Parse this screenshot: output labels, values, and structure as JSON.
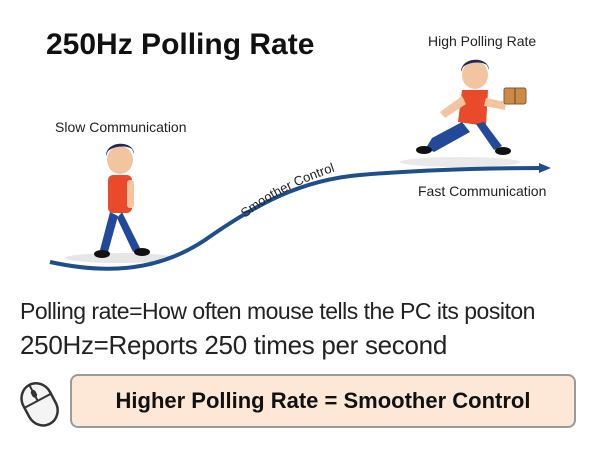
{
  "title": "250Hz Polling Rate",
  "labels": {
    "slow": "Slow Communication",
    "high": "High Polling Rate",
    "curve": "Smoother Control",
    "fast": "Fast Communication"
  },
  "info": {
    "line1": "Polling rate=How often mouse tells the PC its positon",
    "line2": "250Hz=Reports 250 times per second"
  },
  "banner": "Higher Polling Rate = Smoother Control",
  "colors": {
    "curve": "#1f4e8c",
    "shirt": "#e84a2a",
    "pants": "#234a9a",
    "hair": "#1a2a5c",
    "banner_bg": "#fde7d6"
  },
  "icons": [
    "mouse-icon",
    "parcel-icon"
  ]
}
